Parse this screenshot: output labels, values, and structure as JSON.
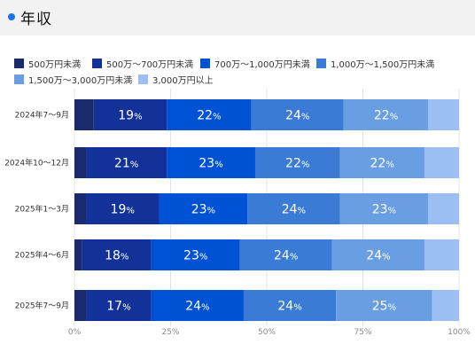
{
  "header": {
    "title": "年収"
  },
  "colors": [
    "#1a2a6c",
    "#12329a",
    "#0052d4",
    "#3a7bd5",
    "#6a9ee3",
    "#9bbff2"
  ],
  "chart_data": {
    "type": "bar",
    "orientation": "horizontal",
    "stacked": "percent",
    "title": "",
    "legend_position": "top",
    "grid": true,
    "xlim": [
      0,
      100
    ],
    "x_ticks": [
      "0%",
      "25%",
      "50%",
      "75%",
      "100%"
    ],
    "categories": [
      "2024年7～9月",
      "2024年10～12月",
      "2025年1～3月",
      "2025年4～6月",
      "2025年7～9月"
    ],
    "series": [
      {
        "name": "500万円未満",
        "values": [
          5,
          3,
          3,
          2,
          3
        ]
      },
      {
        "name": "500万～700万円未満",
        "values": [
          19,
          21,
          19,
          18,
          17
        ]
      },
      {
        "name": "700万～1,000万円未満",
        "values": [
          22,
          23,
          23,
          23,
          24
        ]
      },
      {
        "name": "1,000万～1,500万円未満",
        "values": [
          24,
          22,
          24,
          24,
          24
        ]
      },
      {
        "name": "1,500万～3,000万円未満",
        "values": [
          22,
          22,
          23,
          24,
          25
        ]
      },
      {
        "name": "3,000万円以上",
        "values": [
          8,
          9,
          8,
          9,
          7
        ]
      }
    ]
  }
}
